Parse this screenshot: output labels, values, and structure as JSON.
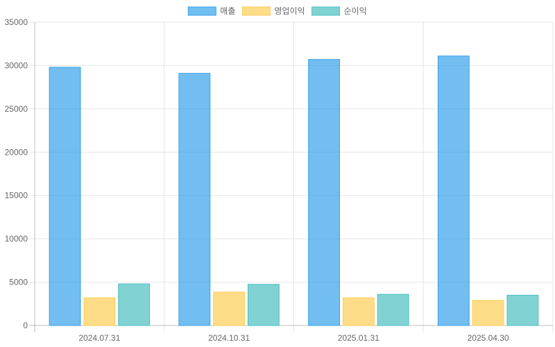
{
  "chart_data": {
    "type": "bar",
    "categories": [
      "2024.07.31",
      "2024.10.31",
      "2025.01.31",
      "2025.04.30"
    ],
    "series": [
      {
        "name": "매출",
        "values": [
          29800,
          29100,
          30700,
          31100
        ],
        "color": "#36a2eb"
      },
      {
        "name": "영업이익",
        "values": [
          3200,
          3850,
          3200,
          2900
        ],
        "color": "#ffcd56"
      },
      {
        "name": "순이익",
        "values": [
          4800,
          4750,
          3600,
          3500
        ],
        "color": "#4bc0c0"
      }
    ],
    "ylim": [
      0,
      35000
    ],
    "yticks": [
      "0",
      "5000",
      "10000",
      "15000",
      "20000",
      "25000",
      "30000",
      "35000"
    ],
    "grid": true,
    "legend_position": "top"
  }
}
